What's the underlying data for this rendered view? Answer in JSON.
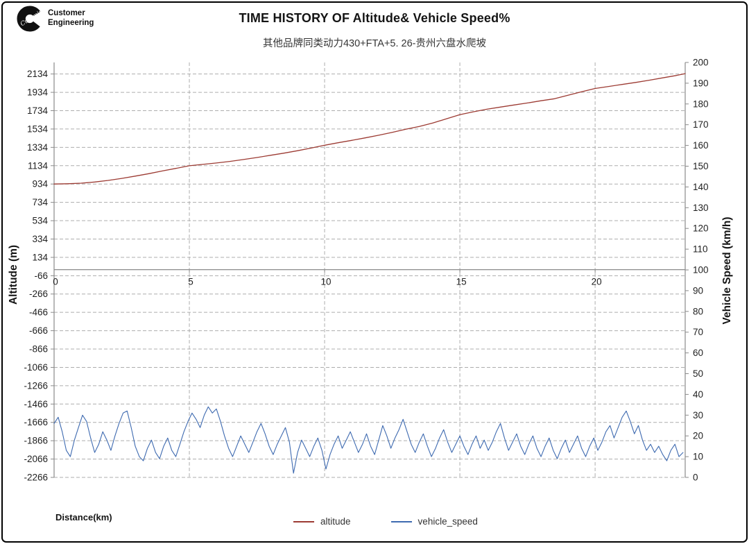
{
  "header": {
    "logo_line1": "Customer",
    "logo_line2": "Engineering",
    "title": "TIME HISTORY OF Altitude& Vehicle Speed%",
    "subtitle": "其他品牌同类动力430+FTA+5. 26-贵州六盘水爬坡"
  },
  "legend": {
    "items": [
      {
        "label": "altitude",
        "color": "#9C3A32"
      },
      {
        "label": "vehicle_speed",
        "color": "#3E6AB0"
      }
    ]
  },
  "colors": {
    "altitude_line": "#9C3A32",
    "speed_line": "#3E6AB0",
    "gridline": "#ADADAD",
    "axis": "#8A8A8A",
    "tick_text": "#1f1f1f"
  },
  "chart_data": {
    "type": "line",
    "title": "TIME HISTORY OF Altitude& Vehicle Speed%",
    "subtitle": "其他品牌同类动力430+FTA+5. 26-贵州六盘水爬坡",
    "xlabel": "Distance(km)",
    "ylabel_left": "Altitude (m)",
    "ylabel_right": "Vehicle Speed (km/h)",
    "grid": "dashed",
    "legend_position": "bottom",
    "x_axis": {
      "min": 0,
      "max": 23.33,
      "ticks": [
        0,
        5,
        10,
        15,
        20
      ]
    },
    "y_left": {
      "min": -2266,
      "max": 2260,
      "ticks": [
        2134,
        1934,
        1734,
        1534,
        1334,
        1134,
        934,
        734,
        534,
        334,
        134,
        -66,
        -266,
        -466,
        -666,
        -866,
        -1066,
        -1266,
        -1466,
        -1666,
        -1866,
        -2066,
        -2266
      ]
    },
    "y_right": {
      "min": 0,
      "max": 200,
      "ticks": [
        200,
        190,
        180,
        170,
        160,
        150,
        140,
        130,
        120,
        110,
        100,
        90,
        80,
        70,
        60,
        50,
        40,
        30,
        20,
        10,
        0
      ]
    },
    "series": [
      {
        "name": "altitude",
        "axis": "left",
        "color": "#9C3A32",
        "x_start": 0,
        "x_step": 0.5,
        "values": [
          934,
          937,
          943,
          956,
          973,
          995,
          1020,
          1047,
          1076,
          1104,
          1133,
          1148,
          1163,
          1181,
          1201,
          1223,
          1247,
          1271,
          1297,
          1326,
          1357,
          1384,
          1410,
          1437,
          1466,
          1497,
          1531,
          1562,
          1600,
          1645,
          1690,
          1722,
          1750,
          1773,
          1796,
          1818,
          1842,
          1864,
          1902,
          1940,
          1976,
          1998,
          2020,
          2042,
          2066,
          2092,
          2118,
          2138
        ]
      },
      {
        "name": "vehicle_speed",
        "axis": "right",
        "color": "#3E6AB0",
        "x_start": 0,
        "x_step": 0.15,
        "values": [
          26,
          29,
          22,
          13,
          10,
          18,
          24,
          30,
          27,
          19,
          12,
          16,
          22,
          18,
          13,
          20,
          26,
          31,
          32,
          24,
          15,
          10,
          8,
          14,
          18,
          12,
          9,
          15,
          19,
          13,
          10,
          16,
          22,
          27,
          31,
          28,
          24,
          30,
          34,
          31,
          33,
          27,
          20,
          14,
          10,
          15,
          20,
          16,
          12,
          17,
          22,
          26,
          21,
          15,
          11,
          16,
          20,
          24,
          17,
          2,
          12,
          18,
          14,
          10,
          15,
          19,
          13,
          4,
          11,
          16,
          20,
          14,
          18,
          22,
          17,
          12,
          16,
          21,
          15,
          11,
          18,
          25,
          20,
          14,
          19,
          23,
          28,
          22,
          16,
          12,
          17,
          21,
          15,
          10,
          14,
          19,
          23,
          17,
          12,
          16,
          20,
          15,
          11,
          16,
          20,
          14,
          18,
          13,
          17,
          22,
          26,
          19,
          13,
          17,
          21,
          15,
          11,
          16,
          20,
          14,
          10,
          15,
          19,
          13,
          9,
          14,
          18,
          12,
          16,
          20,
          14,
          10,
          15,
          19,
          13,
          17,
          22,
          25,
          19,
          24,
          29,
          32,
          27,
          21,
          25,
          18,
          13,
          16,
          12,
          15,
          11,
          8,
          13,
          16,
          10,
          12
        ]
      }
    ]
  }
}
